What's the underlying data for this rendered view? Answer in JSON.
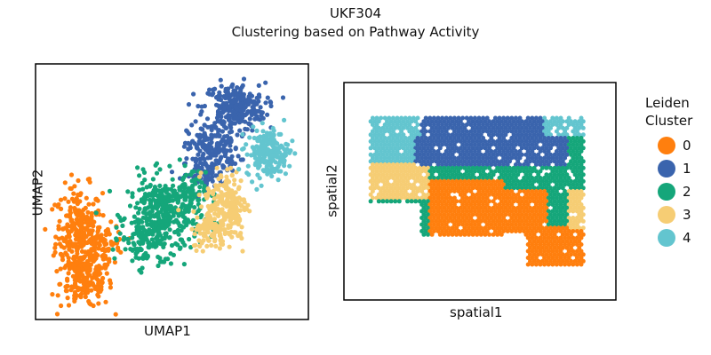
{
  "figure": {
    "title": "UKF304",
    "subtitle": "Clustering based on Pathway Activity"
  },
  "legend": {
    "title_line1": "Leiden",
    "title_line2": "Cluster",
    "items": [
      {
        "label": "0",
        "color": "#ff7f0e"
      },
      {
        "label": "1",
        "color": "#3a64ad"
      },
      {
        "label": "2",
        "color": "#15a67a"
      },
      {
        "label": "3",
        "color": "#f6cd74"
      },
      {
        "label": "4",
        "color": "#63c5cf"
      }
    ]
  },
  "chart_data": [
    {
      "type": "scatter",
      "panel": "UMAP embedding",
      "xlabel": "UMAP1",
      "ylabel": "UMAP2",
      "grid": false,
      "ticks": false,
      "clusters": [
        {
          "name": "0",
          "color": "#ff7f0e",
          "approx_center": [
            0.14,
            0.28
          ],
          "approx_points": 520
        },
        {
          "name": "1",
          "color": "#3a64ad",
          "approx_center": [
            0.74,
            0.77
          ],
          "approx_points": 520
        },
        {
          "name": "2",
          "color": "#15a67a",
          "approx_center": [
            0.46,
            0.4
          ],
          "approx_points": 520
        },
        {
          "name": "3",
          "color": "#f6cd74",
          "approx_center": [
            0.71,
            0.43
          ],
          "approx_points": 300
        },
        {
          "name": "4",
          "color": "#63c5cf",
          "approx_center": [
            0.87,
            0.66
          ],
          "approx_points": 200
        }
      ]
    },
    {
      "type": "scatter",
      "panel": "spatial",
      "xlabel": "spatial1",
      "ylabel": "spatial2",
      "grid": false,
      "ticks": false,
      "clusters": [
        {
          "name": "0",
          "color": "#ff7f0e",
          "region": "lower center and lower right tail"
        },
        {
          "name": "1",
          "color": "#3a64ad",
          "region": "upper band"
        },
        {
          "name": "2",
          "color": "#15a67a",
          "region": "middle band and right side"
        },
        {
          "name": "3",
          "color": "#f6cd74",
          "region": "left side and right edge"
        },
        {
          "name": "4",
          "color": "#63c5cf",
          "region": "top left and top right"
        }
      ]
    }
  ]
}
